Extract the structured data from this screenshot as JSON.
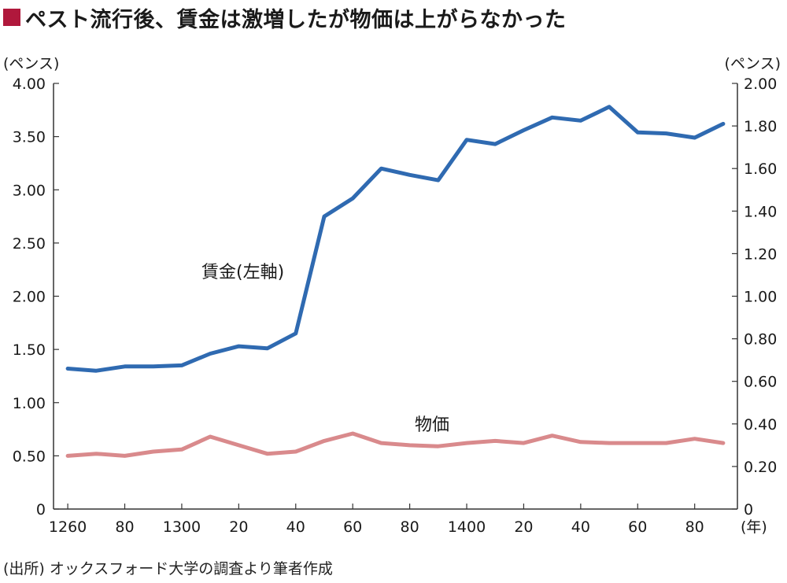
{
  "title": "ペスト流行後、賃金は激増したが物価は上がらなかった",
  "colors": {
    "title_square": "#b0183c",
    "wage": "#2f6ab1",
    "price": "#d98a8c",
    "axis": "#333333"
  },
  "chart_data": {
    "type": "line",
    "x": [
      1260,
      1270,
      1280,
      1290,
      1300,
      1310,
      1320,
      1330,
      1340,
      1350,
      1360,
      1370,
      1380,
      1390,
      1400,
      1410,
      1420,
      1430,
      1440,
      1450,
      1460,
      1470,
      1480,
      1490
    ],
    "x_tick_labels": [
      "1260",
      "80",
      "1300",
      "20",
      "40",
      "60",
      "80",
      "1400",
      "20",
      "40",
      "60",
      "80"
    ],
    "x_tick_values": [
      1260,
      1280,
      1300,
      1320,
      1340,
      1360,
      1380,
      1400,
      1420,
      1440,
      1460,
      1480
    ],
    "x_unit": "(年)",
    "y_left": {
      "unit": "(ペンス)",
      "range": [
        0,
        4.0
      ],
      "ticks": [
        "0",
        "0.50",
        "1.00",
        "1.50",
        "2.00",
        "2.50",
        "3.00",
        "3.50",
        "4.00"
      ]
    },
    "y_right": {
      "unit": "(ペンス)",
      "range": [
        0,
        2.0
      ],
      "ticks": [
        "0",
        "0.20",
        "0.40",
        "0.60",
        "0.80",
        "1.00",
        "1.20",
        "1.40",
        "1.60",
        "1.80",
        "2.00"
      ]
    },
    "series": [
      {
        "name": "賃金(左軸)",
        "axis": "left",
        "values": [
          1.32,
          1.3,
          1.34,
          1.34,
          1.35,
          1.46,
          1.53,
          1.51,
          1.65,
          2.75,
          2.92,
          3.2,
          3.14,
          3.09,
          3.47,
          3.43,
          3.56,
          3.68,
          3.65,
          3.78,
          3.54,
          3.53,
          3.49,
          3.62
        ]
      },
      {
        "name": "物価",
        "axis": "right",
        "values": [
          0.25,
          0.26,
          0.25,
          0.27,
          0.28,
          0.34,
          0.3,
          0.26,
          0.27,
          0.32,
          0.355,
          0.31,
          0.3,
          0.295,
          0.31,
          0.32,
          0.31,
          0.345,
          0.315,
          0.31,
          0.31,
          0.31,
          0.33,
          0.31
        ]
      }
    ],
    "grid": false
  },
  "source": "(出所) オックスフォード大学の調査より筆者作成"
}
